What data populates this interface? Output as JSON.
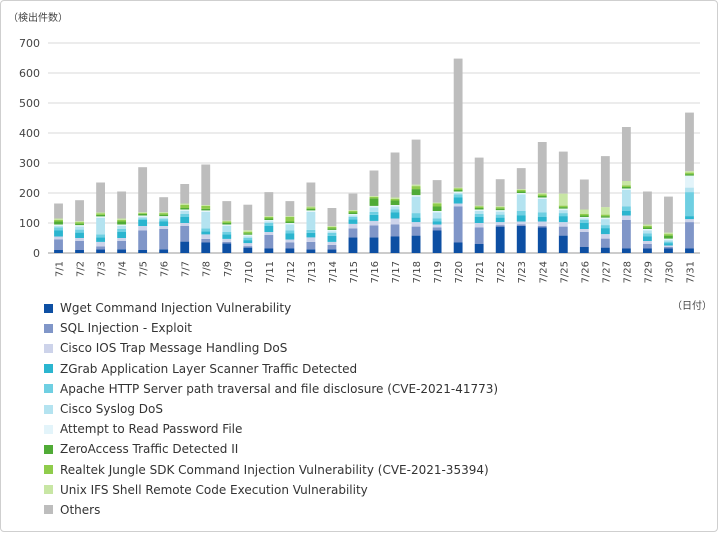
{
  "chart_data": {
    "type": "bar",
    "stacked": true,
    "ylabel": "（検出件数）",
    "xlabel": "（日付）",
    "ylim": [
      0,
      700
    ],
    "yticks": [
      0,
      100,
      200,
      300,
      400,
      500,
      600,
      700
    ],
    "grid": true,
    "legend_position": "bottom",
    "categories": [
      "7/1",
      "7/2",
      "7/3",
      "7/4",
      "7/5",
      "7/6",
      "7/7",
      "7/8",
      "7/9",
      "7/10",
      "7/11",
      "7/12",
      "7/13",
      "7/14",
      "7/15",
      "7/16",
      "7/17",
      "7/18",
      "7/19",
      "7/20",
      "7/21",
      "7/22",
      "7/23",
      "7/24",
      "7/25",
      "7/26",
      "7/27",
      "7/28",
      "7/29",
      "7/30",
      "7/31"
    ],
    "series": [
      {
        "name": "Wget Command Injection Vulnerability",
        "color": "#0d4fa3",
        "values": [
          10,
          10,
          12,
          12,
          10,
          12,
          38,
          35,
          32,
          18,
          15,
          15,
          12,
          12,
          52,
          52,
          55,
          58,
          75,
          35,
          30,
          88,
          90,
          85,
          58,
          20,
          18,
          15,
          15,
          15,
          15
        ]
      },
      {
        "name": "SQL Injection - Exploit",
        "color": "#8096c8",
        "values": [
          35,
          30,
          10,
          28,
          65,
          68,
          52,
          12,
          5,
          5,
          45,
          20,
          25,
          15,
          30,
          40,
          40,
          30,
          10,
          120,
          55,
          5,
          5,
          5,
          30,
          50,
          30,
          95,
          15,
          5,
          88
        ]
      },
      {
        "name": "Cisco IOS Trap Message Handling DoS",
        "color": "#cdd3ea",
        "values": [
          10,
          10,
          15,
          10,
          15,
          10,
          10,
          15,
          10,
          10,
          10,
          10,
          15,
          10,
          15,
          15,
          20,
          15,
          10,
          10,
          15,
          10,
          10,
          15,
          15,
          10,
          15,
          15,
          10,
          5,
          10
        ]
      },
      {
        "name": "ZGrab Application Layer Scanner Traffic Detected",
        "color": "#2bb5cf",
        "values": [
          20,
          18,
          15,
          20,
          20,
          15,
          20,
          10,
          15,
          10,
          20,
          20,
          15,
          20,
          15,
          20,
          20,
          15,
          10,
          20,
          20,
          15,
          20,
          15,
          20,
          20,
          20,
          15,
          15,
          8,
          10
        ]
      },
      {
        "name": "Apache HTTP Server path traversal and file disclosure (CVE-2021-41773)",
        "color": "#6fcfe2",
        "values": [
          10,
          10,
          10,
          10,
          5,
          8,
          10,
          10,
          8,
          8,
          10,
          10,
          10,
          10,
          8,
          10,
          10,
          15,
          10,
          10,
          10,
          10,
          15,
          15,
          10,
          10,
          10,
          15,
          10,
          5,
          80
        ]
      },
      {
        "name": "Cisco Syslog DoS",
        "color": "#b4e3f0",
        "values": [
          5,
          10,
          55,
          10,
          5,
          5,
          10,
          55,
          20,
          5,
          5,
          20,
          60,
          5,
          5,
          15,
          10,
          55,
          20,
          5,
          10,
          10,
          55,
          45,
          10,
          5,
          20,
          55,
          10,
          5,
          15
        ]
      },
      {
        "name": "Attempt to Read Password File",
        "color": "#e3f4fa",
        "values": [
          5,
          5,
          5,
          5,
          5,
          5,
          5,
          5,
          5,
          5,
          5,
          5,
          5,
          5,
          5,
          5,
          5,
          5,
          5,
          5,
          5,
          5,
          5,
          5,
          5,
          5,
          5,
          5,
          5,
          5,
          40
        ]
      },
      {
        "name": "ZeroAccess Traffic Detected II",
        "color": "#50ab36",
        "values": [
          10,
          5,
          5,
          10,
          5,
          5,
          5,
          5,
          5,
          5,
          5,
          5,
          5,
          5,
          5,
          25,
          15,
          20,
          15,
          5,
          5,
          5,
          5,
          5,
          5,
          5,
          5,
          5,
          5,
          10,
          5
        ]
      },
      {
        "name": "Realtek Jungle SDK Command Injection Vulnerability (CVE-2021-35394)",
        "color": "#8fcc4c",
        "values": [
          5,
          5,
          5,
          5,
          3,
          5,
          10,
          10,
          5,
          5,
          5,
          15,
          5,
          5,
          5,
          5,
          5,
          10,
          10,
          5,
          5,
          5,
          5,
          5,
          5,
          5,
          5,
          5,
          5,
          5,
          5
        ]
      },
      {
        "name": "Unix IFS Shell Remote Code Execution Vulnerability",
        "color": "#c8e6a4",
        "values": [
          5,
          3,
          3,
          5,
          3,
          3,
          5,
          3,
          3,
          5,
          3,
          3,
          3,
          3,
          3,
          3,
          5,
          5,
          3,
          3,
          3,
          3,
          3,
          5,
          40,
          15,
          25,
          15,
          5,
          5,
          5
        ]
      },
      {
        "name": "Others",
        "color": "#bdbdbd",
        "values": [
          50,
          70,
          100,
          90,
          150,
          50,
          65,
          135,
          65,
          85,
          80,
          50,
          80,
          60,
          55,
          85,
          150,
          150,
          75,
          430,
          160,
          90,
          70,
          170,
          140,
          100,
          170,
          180,
          110,
          120,
          195
        ]
      }
    ]
  }
}
